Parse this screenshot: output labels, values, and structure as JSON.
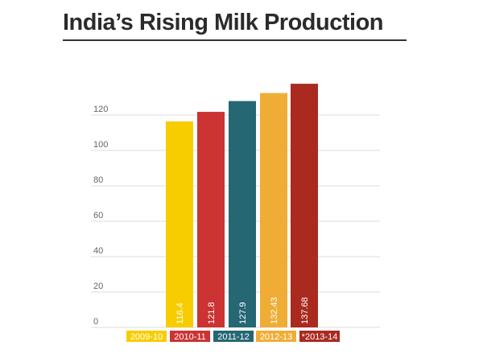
{
  "title": "India’s Rising Milk Production",
  "chart_data": {
    "type": "bar",
    "title": "India’s Rising Milk Production",
    "categories": [
      "2009-10",
      "2010-11",
      "2011-12",
      "2012-13",
      "*2013-14"
    ],
    "values": [
      116.4,
      121.8,
      127.9,
      132.43,
      137.68
    ],
    "value_labels": [
      "116.4",
      "121.8",
      "127.9",
      "132.43",
      "137.68"
    ],
    "colors": [
      "#f7cd00",
      "#cc3333",
      "#266774",
      "#f0ad36",
      "#aa2a1f"
    ],
    "yticks": [
      0,
      20,
      40,
      60,
      80,
      100,
      120
    ],
    "ylim": [
      0,
      140
    ],
    "grid": true,
    "legend": "bottom",
    "xlabel": "",
    "ylabel": ""
  }
}
